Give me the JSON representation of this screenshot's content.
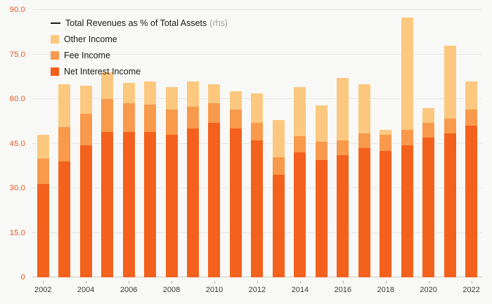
{
  "page": {
    "background": "#f8f8f6"
  },
  "legend": {
    "line_item": {
      "label": "Total Revenues as % of Total Assets",
      "suffix": "(rhs)",
      "swatch_color": "#1a1a1a"
    },
    "items": [
      {
        "label": "Other Income",
        "color": "#fcc87f"
      },
      {
        "label": "Fee Income",
        "color": "#f8994c"
      },
      {
        "label": "Net Interest Income",
        "color": "#f4611c"
      }
    ]
  },
  "chart_data": {
    "type": "bar",
    "stacked": true,
    "title": "",
    "xlabel": "",
    "ylabel": "",
    "ylim": [
      0,
      90
    ],
    "ytick_labels": [
      "0",
      "15.0",
      "30.0",
      "45.0",
      "60.0",
      "75.0",
      "90.0"
    ],
    "ytick_label_color": "#e2541c",
    "grid": "horizontal",
    "legend_position": "top-left-inside",
    "categories": [
      "2002",
      "2003",
      "2004",
      "2005",
      "2006",
      "2007",
      "2008",
      "2009",
      "2010",
      "2011",
      "2012",
      "2013",
      "2014",
      "2015",
      "2016",
      "2017",
      "2018",
      "2019",
      "2020",
      "2021",
      "2022"
    ],
    "x_labeled_categories": [
      "2002",
      "2004",
      "2006",
      "2008",
      "2010",
      "2012",
      "2014",
      "2016",
      "2018",
      "2020",
      "2022"
    ],
    "series": [
      {
        "name": "Net Interest Income",
        "color": "#f4611c",
        "values": [
          31.5,
          39,
          44.5,
          49,
          49,
          49,
          48,
          50,
          52,
          50,
          46,
          34.5,
          42,
          39.5,
          41,
          43.5,
          42.5,
          44.5,
          47,
          48.5,
          51
        ]
      },
      {
        "name": "Fee Income",
        "color": "#f8994c",
        "values": [
          8.5,
          11.5,
          10.5,
          11,
          9.5,
          9,
          8.5,
          7.5,
          6.5,
          6.5,
          6,
          6,
          5.5,
          6,
          5,
          5,
          5.5,
          5,
          5,
          5,
          5.5
        ]
      },
      {
        "name": "Other Income",
        "color": "#fcc87f",
        "values": [
          8,
          14.5,
          9.5,
          9,
          7,
          8,
          7.5,
          8.5,
          6.5,
          6,
          10,
          12.5,
          16.5,
          12.5,
          21,
          16.5,
          1.5,
          38,
          5,
          24.5,
          9.5
        ]
      }
    ],
    "overlay_line_series": {
      "name": "Total Revenues as % of Total Assets",
      "axis": "rhs"
    }
  }
}
